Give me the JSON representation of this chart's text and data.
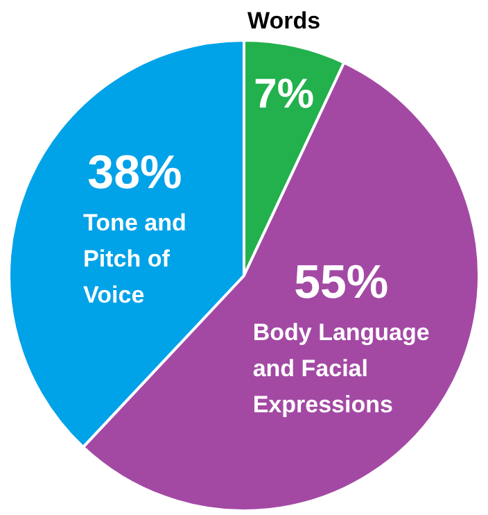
{
  "chart_data": {
    "type": "pie",
    "categories": [
      "Words",
      "Body Language and Facial Expressions",
      "Tone and Pitch of Voice"
    ],
    "values": [
      7,
      55,
      38
    ],
    "colors": [
      "#22b14c",
      "#a349a4",
      "#00a2e8"
    ],
    "value_labels": [
      "7%",
      "55%",
      "38%"
    ]
  }
}
